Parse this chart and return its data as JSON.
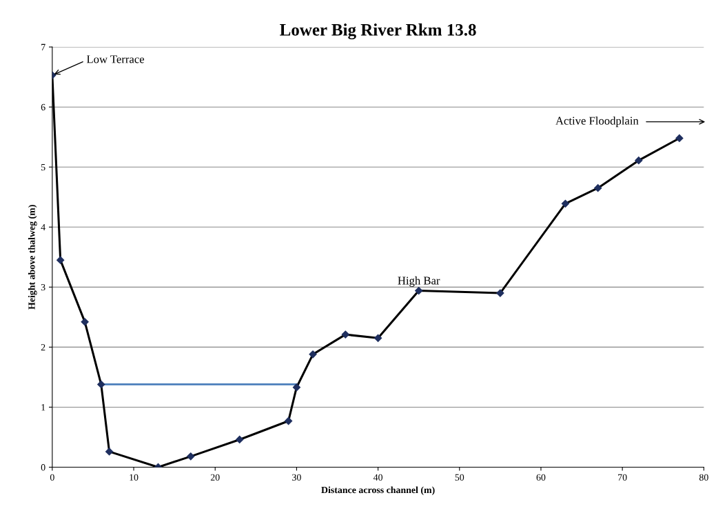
{
  "chart_data": {
    "type": "line",
    "title": "Lower Big River Rkm 13.8",
    "xlabel": "Distance across channel (m)",
    "ylabel": "Height above thalweg (m)",
    "series": [
      {
        "color": "#000000",
        "marker": "diamond",
        "x": [
          0,
          1,
          4,
          6,
          7,
          13,
          17,
          23,
          29,
          30,
          32,
          36,
          40,
          45,
          55,
          63,
          67,
          72,
          77
        ],
        "values": [
          6.53,
          3.45,
          2.42,
          1.38,
          0.26,
          0,
          0.18,
          0.46,
          0.77,
          1.33,
          1.88,
          2.21,
          2.15,
          2.94,
          2.9,
          4.39,
          4.65,
          5.11,
          5.48
        ]
      },
      {
        "color": "#4a7ebb",
        "marker": "none",
        "x": [
          6,
          30
        ],
        "values": [
          1.38,
          1.38
        ]
      }
    ],
    "annotations": [
      {
        "text": "Low Terrace",
        "x": 0,
        "y": 6.53
      },
      {
        "text": "High Bar",
        "x": 45,
        "y": 2.94
      },
      "Active Floodplain"
    ],
    "xlim": [
      0,
      80
    ],
    "ylim": [
      0,
      7
    ],
    "xticks": [
      0,
      10,
      20,
      30,
      40,
      50,
      60,
      70,
      80
    ],
    "yticks": [
      0,
      1,
      2,
      3,
      4,
      5,
      6,
      7
    ],
    "grid": "y"
  }
}
